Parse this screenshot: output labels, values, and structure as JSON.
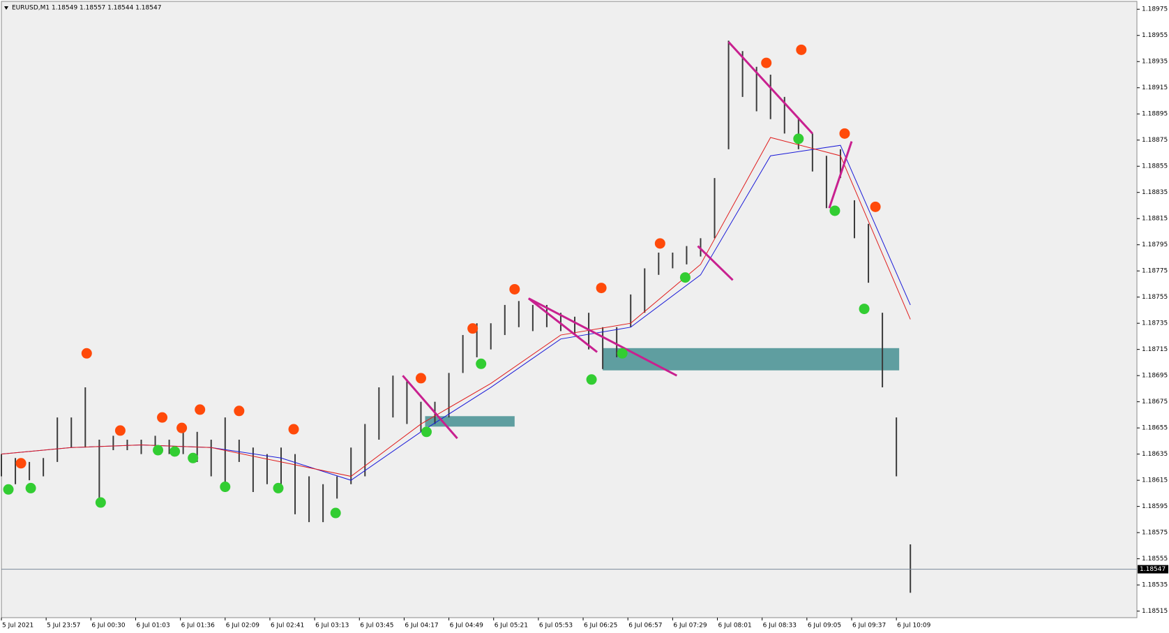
{
  "chart_data": {
    "type": "range-bar",
    "title": "EURUSD,M1  1.18549 1.18557 1.18544 1.18547",
    "bar_color": "#3a3a3a",
    "x": [
      0,
      10,
      20,
      30,
      40,
      50,
      60,
      70,
      80,
      90,
      100,
      110,
      120,
      130,
      140,
      150,
      160,
      170,
      180,
      190,
      200,
      210,
      220,
      230,
      240,
      250,
      260,
      270,
      280,
      290,
      300,
      310,
      320,
      330,
      340,
      350,
      360,
      370,
      380,
      390,
      400,
      410,
      420,
      430,
      440,
      450,
      460,
      470,
      480,
      490,
      500,
      510,
      520,
      530,
      540,
      550,
      560,
      570,
      580,
      590,
      600,
      610,
      620,
      630,
      640,
      650
    ],
    "high": [
      1.18635,
      1.18632,
      1.18629,
      1.18632,
      1.18663,
      1.18663,
      1.18686,
      1.18646,
      1.18649,
      1.18646,
      1.18646,
      1.18649,
      1.18646,
      1.18652,
      1.18652,
      1.18646,
      1.18663,
      1.18646,
      1.1864,
      1.18635,
      1.1864,
      1.18635,
      1.18618,
      1.18612,
      1.18618,
      1.1864,
      1.18658,
      1.18686,
      1.18695,
      1.18692,
      1.18675,
      1.18675,
      1.18697,
      1.18726,
      1.18735,
      1.18735,
      1.18749,
      1.18752,
      1.18749,
      1.18749,
      1.18743,
      1.1874,
      1.18743,
      1.18732,
      1.18732,
      1.18757,
      1.18777,
      1.18789,
      1.18789,
      1.18794,
      1.188,
      1.18846,
      1.18951,
      1.18943,
      1.18931,
      1.18925,
      1.18908,
      1.18891,
      1.1888,
      1.18863,
      1.18868,
      1.18829,
      1.18811,
      1.18743,
      1.18663,
      1.18566
    ],
    "low": [
      1.18618,
      1.18612,
      1.18615,
      1.18618,
      1.18629,
      1.1864,
      1.1864,
      1.18601,
      1.18638,
      1.18638,
      1.18635,
      1.18635,
      1.18635,
      1.18635,
      1.18629,
      1.18618,
      1.18606,
      1.18629,
      1.18606,
      1.18612,
      1.18612,
      1.18589,
      1.18583,
      1.18583,
      1.18601,
      1.18612,
      1.18618,
      1.18646,
      1.18663,
      1.18658,
      1.18652,
      1.18658,
      1.18663,
      1.18697,
      1.18709,
      1.18715,
      1.18726,
      1.18732,
      1.18729,
      1.18732,
      1.18729,
      1.18726,
      1.18715,
      1.187,
      1.18709,
      1.18732,
      1.18743,
      1.18772,
      1.18777,
      1.1878,
      1.18786,
      1.188,
      1.18868,
      1.18908,
      1.18897,
      1.18891,
      1.1888,
      1.18868,
      1.18851,
      1.18823,
      1.18846,
      1.188,
      1.18766,
      1.18686,
      1.18618,
      1.18529
    ],
    "lines": [
      {
        "color": "#1a1ad8",
        "x": [
          0,
          50,
          100,
          150,
          200,
          250,
          300,
          350,
          400,
          450,
          500,
          550,
          600,
          650
        ],
        "values": [
          1.18635,
          1.1864,
          1.18642,
          1.1864,
          1.18632,
          1.18615,
          1.18652,
          1.18686,
          1.18723,
          1.18732,
          1.18772,
          1.18863,
          1.18871,
          1.18749
        ]
      },
      {
        "color": "#e01c1c",
        "x": [
          0,
          50,
          100,
          150,
          200,
          250,
          300,
          350,
          400,
          450,
          500,
          550,
          600,
          650
        ],
        "values": [
          1.18635,
          1.1864,
          1.18642,
          1.1864,
          1.18629,
          1.18618,
          1.18658,
          1.18689,
          1.18726,
          1.18735,
          1.1878,
          1.18877,
          1.18863,
          1.18738
        ]
      }
    ],
    "signals": [
      {
        "color": "#ff4a0a",
        "x": [
          14,
          61,
          85,
          115,
          129,
          142,
          170,
          209,
          300,
          337,
          367,
          429,
          471,
          547,
          572,
          603,
          625
        ],
        "values": [
          1.18628,
          1.18712,
          1.18653,
          1.18663,
          1.18655,
          1.18669,
          1.18668,
          1.18654,
          1.18693,
          1.18731,
          1.18761,
          1.18762,
          1.18796,
          1.18934,
          1.18944,
          1.1888,
          1.18824
        ]
      },
      {
        "color": "#32cd32",
        "x": [
          5,
          21,
          71,
          112,
          124,
          137,
          160,
          198,
          239,
          304,
          343,
          422,
          444,
          489,
          570,
          596,
          617
        ],
        "values": [
          1.18608,
          1.18609,
          1.18598,
          1.18638,
          1.18637,
          1.18632,
          1.1861,
          1.18609,
          1.1859,
          1.18652,
          1.18704,
          1.18692,
          1.18712,
          1.1877,
          1.18876,
          1.18821,
          1.18746
        ]
      }
    ],
    "trendlines": {
      "color": "#c8208f",
      "segments": [
        {
          "x": [
            287,
            326
          ],
          "values": [
            1.18695,
            1.18647
          ]
        },
        {
          "x": [
            377,
            426
          ],
          "values": [
            1.18754,
            1.18713
          ]
        },
        {
          "x": [
            377,
            483
          ],
          "values": [
            1.18754,
            1.18695
          ]
        },
        {
          "x": [
            498,
            523
          ],
          "values": [
            1.18794,
            1.18768
          ]
        },
        {
          "x": [
            520,
            580
          ],
          "values": [
            1.1895,
            1.1888
          ]
        },
        {
          "x": [
            592,
            608
          ],
          "values": [
            1.18823,
            1.18874
          ]
        }
      ]
    },
    "zones": {
      "color": "#5f9ea0",
      "items": [
        {
          "x": [
            303,
            367
          ],
          "values": [
            1.18664,
            1.18656
          ]
        },
        {
          "x": [
            430,
            642
          ],
          "values": [
            1.18716,
            1.18699
          ]
        }
      ]
    },
    "last_price": 1.18547,
    "ylim": [
      1.1851,
      1.18981
    ],
    "yticks": [
      1.18975,
      1.18955,
      1.18935,
      1.18915,
      1.18895,
      1.18875,
      1.18855,
      1.18835,
      1.18815,
      1.18795,
      1.18775,
      1.18755,
      1.18735,
      1.18715,
      1.18695,
      1.18675,
      1.18655,
      1.18635,
      1.18615,
      1.18595,
      1.18575,
      1.18555,
      1.18535,
      1.18515
    ],
    "xlim": [
      0,
      812
    ],
    "xticks": [
      {
        "value": 0,
        "label": "5 Jul 2021"
      },
      {
        "value": 32,
        "label": "5 Jul 23:57"
      },
      {
        "value": 64,
        "label": "6 Jul 00:30"
      },
      {
        "value": 96,
        "label": "6 Jul 01:03"
      },
      {
        "value": 128,
        "label": "6 Jul 01:36"
      },
      {
        "value": 160,
        "label": "6 Jul 02:09"
      },
      {
        "value": 192,
        "label": "6 Jul 02:41"
      },
      {
        "value": 224,
        "label": "6 Jul 03:13"
      },
      {
        "value": 256,
        "label": "6 Jul 03:45"
      },
      {
        "value": 288,
        "label": "6 Jul 04:17"
      },
      {
        "value": 320,
        "label": "6 Jul 04:49"
      },
      {
        "value": 352,
        "label": "6 Jul 05:21"
      },
      {
        "value": 384,
        "label": "6 Jul 05:53"
      },
      {
        "value": 416,
        "label": "6 Jul 06:25"
      },
      {
        "value": 448,
        "label": "6 Jul 06:57"
      },
      {
        "value": 480,
        "label": "6 Jul 07:29"
      },
      {
        "value": 512,
        "label": "6 Jul 08:01"
      },
      {
        "value": 544,
        "label": "6 Jul 08:33"
      },
      {
        "value": 576,
        "label": "6 Jul 09:05"
      },
      {
        "value": 608,
        "label": "6 Jul 09:37"
      },
      {
        "value": 640,
        "label": "6 Jul 10:09"
      }
    ]
  }
}
